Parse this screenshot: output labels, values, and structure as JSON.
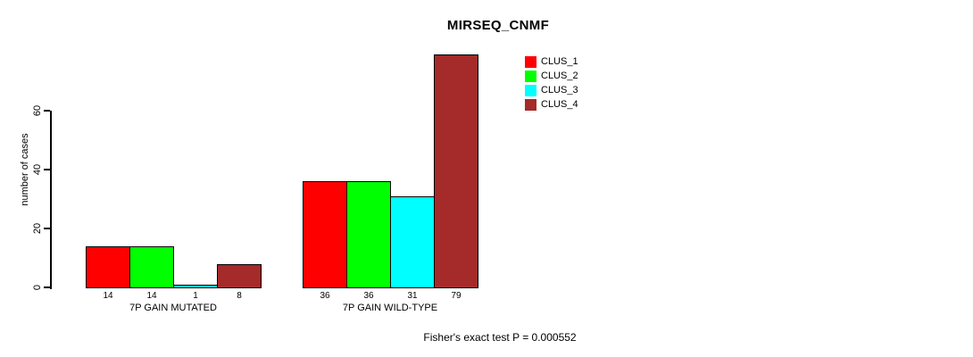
{
  "chart_data": {
    "type": "bar",
    "title": "MIRSEQ_CNMF",
    "ylabel": "number of cases",
    "xlabel": "",
    "categories": [
      "7P GAIN MUTATED",
      "7P GAIN WILD-TYPE"
    ],
    "series": [
      {
        "name": "CLUS_1",
        "color": "#FF0000",
        "values": [
          14,
          36
        ]
      },
      {
        "name": "CLUS_2",
        "color": "#00FF00",
        "values": [
          14,
          36
        ]
      },
      {
        "name": "CLUS_3",
        "color": "#00FFFF",
        "values": [
          1,
          31
        ]
      },
      {
        "name": "CLUS_4",
        "color": "#A52A2A",
        "values": [
          8,
          79
        ]
      }
    ],
    "yticks": [
      0,
      20,
      40,
      60
    ],
    "ylim": [
      0,
      80
    ],
    "grid": false,
    "legend_position": "top-right",
    "bar_value_labels": true,
    "annotation": "Fisher's exact test P = 0.000552",
    "background_color": "#FFFFFF",
    "text_color": "#000000"
  }
}
